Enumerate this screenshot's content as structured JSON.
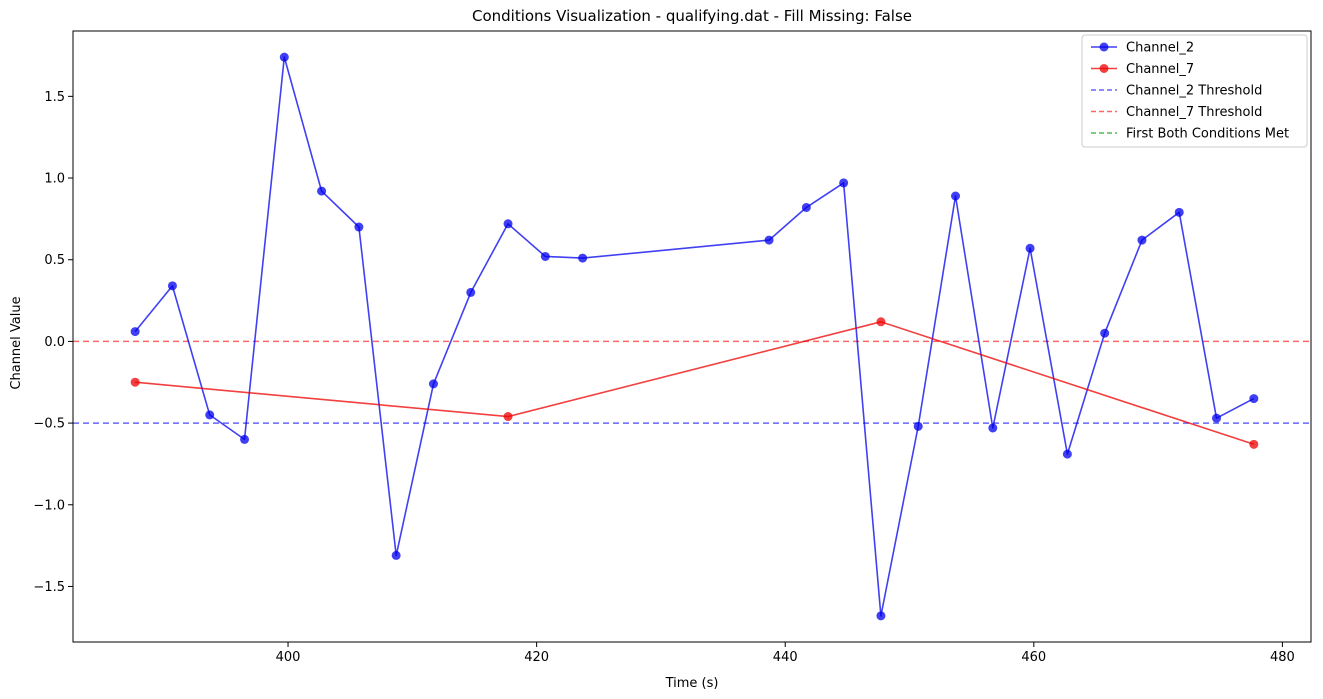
{
  "chart_data": {
    "type": "line",
    "title": "Conditions Visualization - qualifying.dat - Fill Missing: False",
    "xlabel": "Time (s)",
    "ylabel": "Channel Value",
    "xlim": [
      382.7,
      482.3
    ],
    "ylim": [
      -1.84,
      1.9
    ],
    "xticks": [
      400,
      420,
      440,
      460,
      480
    ],
    "xtick_labels": [
      "400",
      "420",
      "440",
      "460",
      "480"
    ],
    "yticks": [
      -1.5,
      -1.0,
      -0.5,
      0.0,
      0.5,
      1.0,
      1.5
    ],
    "ytick_labels": [
      "−1.5",
      "−1.0",
      "−0.5",
      "0.0",
      "0.5",
      "1.0",
      "1.5"
    ],
    "grid": false,
    "legend_position": "top-right",
    "series": [
      {
        "name": "Channel_2",
        "color": "#0000ee",
        "style": "solid-with-markers",
        "x": [
          387.7,
          390.7,
          393.7,
          396.5,
          399.7,
          402.7,
          405.7,
          408.7,
          411.7,
          414.7,
          417.7,
          420.7,
          423.7,
          438.7,
          441.7,
          444.7,
          447.7,
          450.7,
          453.7,
          456.7,
          459.7,
          462.7,
          465.7,
          468.7,
          471.7,
          474.7,
          477.7
        ],
        "y": [
          0.06,
          0.34,
          -0.45,
          -0.6,
          1.74,
          0.92,
          0.7,
          -1.31,
          -0.26,
          0.3,
          0.72,
          0.52,
          0.51,
          0.62,
          0.82,
          0.97,
          -1.68,
          -0.52,
          0.89,
          -0.53,
          0.57,
          -0.69,
          0.05,
          0.62,
          0.79,
          -0.47,
          -0.35
        ]
      },
      {
        "name": "Channel_7",
        "color": "#ee0000",
        "style": "solid-with-markers",
        "x": [
          387.7,
          417.7,
          447.7,
          477.7
        ],
        "y": [
          -0.25,
          -0.46,
          0.12,
          -0.63
        ]
      }
    ],
    "thresholds": [
      {
        "name": "Channel_2 Threshold",
        "y": -0.5,
        "color": "#6666ff"
      },
      {
        "name": "Channel_7 Threshold",
        "y": 0.0,
        "color": "#ff6666"
      }
    ],
    "legend": [
      {
        "label": "Channel_2",
        "color": "#0000ee",
        "kind": "line-marker"
      },
      {
        "label": "Channel_7",
        "color": "#ee0000",
        "kind": "line-marker"
      },
      {
        "label": "Channel_2 Threshold",
        "color": "#6666ff",
        "kind": "dashed"
      },
      {
        "label": "Channel_7 Threshold",
        "color": "#ff6666",
        "kind": "dashed"
      },
      {
        "label": "First Both Conditions Met",
        "color": "#55bb55",
        "kind": "dashed"
      }
    ]
  }
}
